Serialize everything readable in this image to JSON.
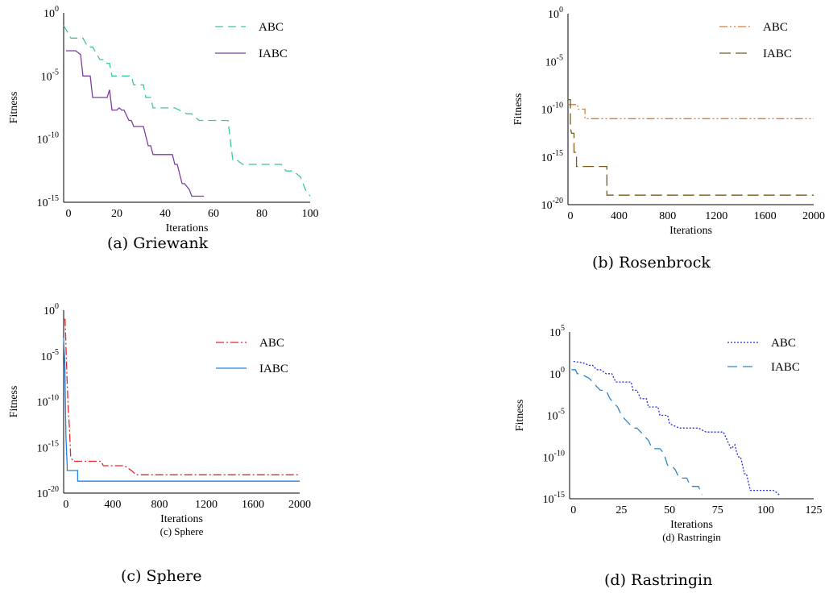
{
  "figure": {
    "captions": [
      "(a) Griewank",
      "(b) Rosenbrock",
      "(c) Sphere",
      "(d) Rastringin"
    ]
  },
  "chart_data": [
    {
      "type": "line",
      "caption": "(a) Griewank",
      "inner_title": "",
      "xlabel": "Iterations",
      "ylabel": "Fitness",
      "xlim": [
        -2,
        100
      ],
      "xticks": [
        0,
        20,
        40,
        60,
        80,
        100
      ],
      "xtick_labels": [
        "0",
        "20",
        "40",
        "60",
        "80",
        "100"
      ],
      "ylim_log10": [
        -15,
        0
      ],
      "yscale": "log",
      "yticks": [
        {
          "base": "10",
          "exp": "0",
          "value": 1
        },
        {
          "base": "10",
          "exp": "-5",
          "value": 1e-05
        },
        {
          "base": "10",
          "exp": "-10",
          "value": 1e-10
        },
        {
          "base": "10",
          "exp": "-15",
          "value": 1e-15
        }
      ],
      "legend_position": "top-right",
      "grid": false,
      "series": [
        {
          "name": "ABC",
          "color": "#3cc7a0",
          "dash": "10,6",
          "x": [
            -2,
            1,
            1,
            6,
            8,
            10,
            13,
            15,
            16,
            17,
            18,
            19,
            24,
            26,
            27,
            31,
            32,
            34,
            35,
            37,
            44,
            49,
            51,
            54,
            61,
            66,
            68,
            70,
            72,
            75,
            88,
            90,
            93,
            96,
            98,
            100
          ],
          "y": [
            0.1,
            0.01,
            0.01,
            0.01,
            0.002,
            0.002,
            0.0002,
            0.0002,
            0.0001,
            0.0001,
            1e-05,
            1e-05,
            1e-05,
            1e-05,
            2e-06,
            2e-06,
            2e-07,
            2e-07,
            3e-08,
            3e-08,
            3e-08,
            1e-08,
            1e-08,
            3e-09,
            3e-09,
            3e-09,
            2e-12,
            2e-12,
            1e-12,
            1e-12,
            1e-12,
            3e-13,
            3e-13,
            1e-13,
            1e-14,
            3e-15
          ]
        },
        {
          "name": "IABC",
          "color": "#7b3f9e",
          "dash": "",
          "x": [
            -1,
            1,
            3,
            4,
            5,
            6,
            8,
            9,
            10,
            11,
            16,
            17,
            18,
            20,
            21,
            22,
            23,
            25,
            26,
            27,
            28,
            31,
            33,
            34,
            35,
            36,
            43,
            44,
            45,
            47,
            48,
            50,
            51,
            53,
            56
          ],
          "y": [
            0.001,
            0.001,
            0.001,
            0.0007,
            0.0005,
            1e-05,
            1e-05,
            1e-05,
            2e-07,
            2e-07,
            2e-07,
            8e-07,
            2e-08,
            2e-08,
            3e-08,
            2e-08,
            2e-08,
            3e-09,
            3e-09,
            1e-09,
            1e-09,
            1e-09,
            3e-11,
            3e-11,
            6e-12,
            6e-12,
            6e-12,
            1e-12,
            1e-12,
            3e-14,
            3e-14,
            1e-14,
            3e-15,
            3e-15,
            3e-15
          ]
        }
      ]
    },
    {
      "type": "line",
      "caption": "(b) Rosenbrock",
      "inner_title": "",
      "xlabel": "Iterations",
      "ylabel": "Fitness",
      "xlim": [
        -20,
        2000
      ],
      "xticks": [
        0,
        400,
        800,
        1200,
        1600,
        2000
      ],
      "xtick_labels": [
        "0",
        "400",
        "800",
        "1200",
        "1600",
        "2000"
      ],
      "ylim_log10": [
        -20,
        0
      ],
      "yscale": "log",
      "yticks": [
        {
          "base": "10",
          "exp": "0",
          "value": 1
        },
        {
          "base": "10",
          "exp": "-5",
          "value": 1e-05
        },
        {
          "base": "10",
          "exp": "-10",
          "value": 1e-10
        },
        {
          "base": "10",
          "exp": "-15",
          "value": 1e-15
        },
        {
          "base": "10",
          "exp": "-20",
          "value": 1e-20
        }
      ],
      "legend_position": "top-right",
      "grid": false,
      "series": [
        {
          "name": "ABC",
          "color": "#e07a2e",
          "dash": "10,3,2,3,2,3",
          "x": [
            -20,
            60,
            60,
            100,
            120,
            120,
            2000
          ],
          "y": [
            3e-10,
            3e-10,
            1e-10,
            1e-10,
            1e-10,
            1e-11,
            1e-11
          ]
        },
        {
          "name": "IABC",
          "color": "#7a5a1a",
          "dash": "14,6",
          "x": [
            -20,
            0,
            0,
            10,
            30,
            30,
            50,
            50,
            300,
            300,
            2000
          ],
          "y": [
            1e-09,
            1e-09,
            1e-12,
            3e-13,
            3e-13,
            3e-15,
            3e-15,
            1e-16,
            1e-16,
            1e-19,
            1e-19
          ]
        }
      ]
    },
    {
      "type": "line",
      "caption": "(c) Sphere",
      "inner_title": "(c) Sphere",
      "xlabel": "Iterations",
      "ylabel": "Fitness",
      "xlim": [
        -20,
        2000
      ],
      "xticks": [
        0,
        400,
        800,
        1200,
        1600,
        2000
      ],
      "xtick_labels": [
        "0",
        "400",
        "800",
        "1200",
        "1600",
        "2000"
      ],
      "ylim_log10": [
        -20,
        0
      ],
      "yscale": "log",
      "yticks": [
        {
          "base": "10",
          "exp": "0",
          "value": 1
        },
        {
          "base": "10",
          "exp": "-5",
          "value": 1e-05
        },
        {
          "base": "10",
          "exp": "-10",
          "value": 1e-10
        },
        {
          "base": "10",
          "exp": "-15",
          "value": 1e-15
        },
        {
          "base": "10",
          "exp": "-20",
          "value": 1e-20
        }
      ],
      "legend_position": "top-right",
      "grid": false,
      "series": [
        {
          "name": "ABC",
          "color": "#e8242a",
          "dash": "10,3,2,3",
          "x": [
            -20,
            -8,
            -5,
            0,
            10,
            20,
            30,
            40,
            60,
            300,
            320,
            500,
            560,
            600,
            2000
          ],
          "y": [
            0.1,
            0.1,
            0.01,
            0.0001,
            1e-08,
            1e-11,
            1e-13,
            1e-16,
            3e-17,
            3e-17,
            1e-17,
            1e-17,
            3e-18,
            1e-18,
            1e-18
          ]
        },
        {
          "name": "IABC",
          "color": "#1f82e8",
          "dash": "",
          "x": [
            -20,
            -10,
            -5,
            0,
            10,
            10,
            100,
            100,
            2000
          ],
          "y": [
            0.001,
            1e-06,
            1e-10,
            1e-14,
            1e-17,
            3e-18,
            3e-18,
            2e-19,
            2e-19
          ]
        }
      ]
    },
    {
      "type": "line",
      "caption": "(d) Rastringin",
      "inner_title": "(d) Rastringin",
      "xlabel": "Iterations",
      "ylabel": "Fitness",
      "xlim": [
        -2,
        125
      ],
      "xticks": [
        0,
        25,
        50,
        75,
        100,
        125
      ],
      "xtick_labels": [
        "0",
        "25",
        "50",
        "75",
        "100",
        "125"
      ],
      "ylim_log10": [
        -15,
        5
      ],
      "yscale": "log",
      "yticks": [
        {
          "base": "10",
          "exp": "5",
          "value": 100000
        },
        {
          "base": "10",
          "exp": "0",
          "value": 1
        },
        {
          "base": "10",
          "exp": "-5",
          "value": 1e-05
        },
        {
          "base": "10",
          "exp": "-10",
          "value": 1e-10
        },
        {
          "base": "10",
          "exp": "-15",
          "value": 1e-15
        }
      ],
      "legend_position": "top-right",
      "grid": false,
      "series": [
        {
          "name": "ABC",
          "color": "#1e2ae6",
          "dash": "2,2",
          "x": [
            0,
            5,
            8,
            10,
            12,
            13,
            14,
            17,
            19,
            20,
            22,
            24,
            27,
            28,
            30,
            31,
            33,
            35,
            37,
            38,
            39,
            40,
            41,
            42,
            44,
            45,
            48,
            49,
            50,
            55,
            58,
            62,
            65,
            69,
            75,
            78,
            80,
            82,
            84,
            85,
            86,
            87,
            88,
            89,
            90,
            92,
            94,
            96,
            100,
            102,
            104,
            106,
            107
          ],
          "y": [
            30,
            20,
            10,
            10,
            3,
            3,
            3,
            1,
            1,
            1,
            0.1,
            0.1,
            0.1,
            0.1,
            0.1,
            0.01,
            0.01,
            0.001,
            0.001,
            0.001,
            0.0001,
            0.0001,
            0.0001,
            0.0001,
            0.0001,
            1e-05,
            1e-05,
            1e-05,
            1e-06,
            3e-07,
            3e-07,
            3e-07,
            3e-07,
            1e-07,
            1e-07,
            1e-07,
            1e-08,
            1e-09,
            3e-09,
            3e-10,
            1e-10,
            1e-10,
            1e-11,
            1e-12,
            1e-12,
            1e-14,
            1e-14,
            1e-14,
            1e-14,
            1e-14,
            1e-14,
            5e-15,
            3e-15
          ]
        },
        {
          "name": "IABC",
          "color": "#2b86c6",
          "dash": "12,7",
          "x": [
            -1,
            1,
            2,
            4,
            6,
            8,
            10,
            12,
            14,
            17,
            19,
            21,
            23,
            25,
            27,
            29,
            31,
            33,
            35,
            37,
            39,
            41,
            43,
            45,
            47,
            49,
            51,
            53,
            55,
            57,
            59,
            61,
            63,
            65,
            67
          ],
          "y": [
            3,
            3,
            1,
            1,
            0.5,
            0.3,
            0.1,
            0.03,
            0.01,
            0.01,
            0.001,
            0.0003,
            0.0001,
            1e-05,
            3e-06,
            1e-06,
            3e-07,
            3e-07,
            1e-07,
            3e-08,
            1e-08,
            1e-09,
            1e-09,
            1e-09,
            3e-10,
            1e-11,
            1e-11,
            3e-12,
            3e-13,
            3e-13,
            3e-13,
            3e-14,
            3e-14,
            3e-14,
            3e-15
          ]
        }
      ]
    }
  ]
}
